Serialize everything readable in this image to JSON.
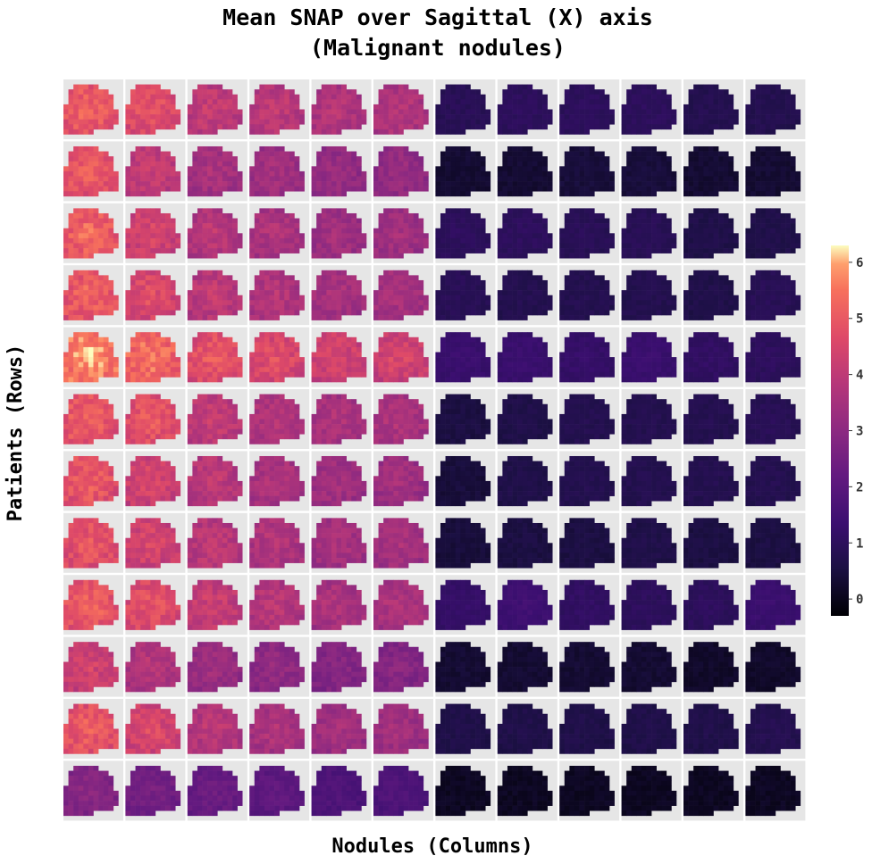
{
  "chart_data": {
    "type": "heatmap",
    "title_line1": "Mean SNAP over Sagittal (X) axis",
    "title_line2": "(Malignant nodules)",
    "xlabel": "Nodules (Columns)",
    "ylabel": "Patients (Rows)",
    "grid_rows": 12,
    "grid_cols": 12,
    "colormap": "magma",
    "colorbar": {
      "min": -0.3,
      "max": 6.3,
      "ticks": [
        "0",
        "1",
        "2",
        "3",
        "4",
        "5",
        "6"
      ],
      "tick_values": [
        0,
        1,
        2,
        3,
        4,
        5,
        6
      ]
    },
    "cell_mean_values": [
      [
        4.6,
        4.3,
        3.7,
        3.6,
        3.4,
        3.4,
        0.8,
        0.9,
        0.9,
        0.9,
        0.7,
        0.7
      ],
      [
        4.5,
        3.7,
        3.2,
        3.1,
        2.9,
        2.9,
        0.3,
        0.3,
        0.4,
        0.4,
        0.3,
        0.3
      ],
      [
        4.7,
        4.0,
        3.5,
        3.3,
        3.1,
        3.1,
        0.9,
        0.9,
        0.8,
        0.8,
        0.6,
        0.6
      ],
      [
        4.6,
        4.2,
        3.6,
        3.4,
        3.2,
        3.2,
        0.8,
        0.7,
        0.7,
        0.7,
        0.6,
        0.8
      ],
      [
        5.2,
        4.9,
        4.4,
        4.2,
        4.0,
        4.0,
        1.2,
        1.2,
        1.1,
        1.2,
        1.0,
        0.9
      ],
      [
        4.6,
        4.4,
        3.7,
        3.4,
        3.3,
        3.3,
        0.5,
        0.6,
        0.7,
        0.7,
        0.7,
        0.8
      ],
      [
        4.5,
        4.0,
        3.6,
        3.3,
        3.1,
        3.1,
        0.4,
        0.6,
        0.7,
        0.7,
        0.7,
        0.7
      ],
      [
        4.4,
        4.0,
        3.6,
        3.4,
        3.2,
        3.2,
        0.4,
        0.5,
        0.5,
        0.6,
        0.5,
        0.5
      ],
      [
        4.6,
        4.3,
        3.8,
        3.5,
        3.3,
        3.3,
        1.1,
        1.3,
        1.0,
        0.9,
        0.9,
        1.2
      ],
      [
        3.9,
        3.4,
        3.0,
        2.8,
        2.6,
        2.6,
        0.3,
        0.3,
        0.3,
        0.3,
        0.2,
        0.2
      ],
      [
        4.5,
        4.1,
        3.5,
        3.3,
        3.1,
        3.1,
        0.6,
        0.6,
        0.6,
        0.6,
        0.6,
        0.7
      ],
      [
        2.6,
        2.3,
        2.1,
        1.9,
        1.6,
        1.6,
        0.1,
        0.1,
        0.1,
        0.1,
        0.1,
        0.1
      ]
    ]
  }
}
